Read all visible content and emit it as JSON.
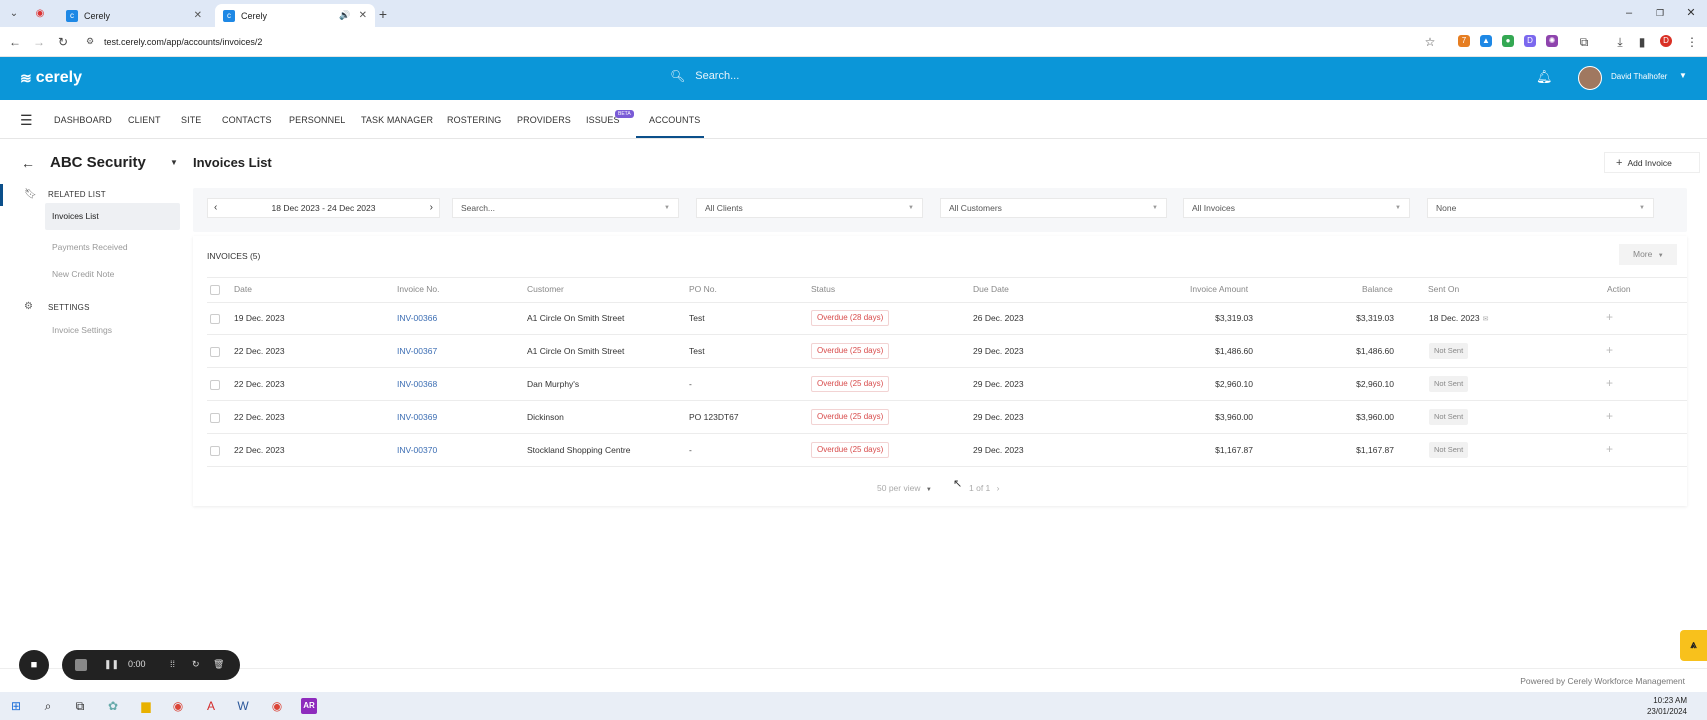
{
  "browser": {
    "tabs": [
      {
        "title": "Cerely"
      },
      {
        "title": "Cerely"
      }
    ],
    "url": "test.cerely.com/app/accounts/invoices/2"
  },
  "header": {
    "logo": "cerely",
    "search_placeholder": "Search...",
    "username": "David Thalhofer"
  },
  "nav": {
    "items": [
      "DASHBOARD",
      "CLIENT",
      "SITE",
      "CONTACTS",
      "PERSONNEL",
      "TASK MANAGER",
      "ROSTERING",
      "PROVIDERS",
      "ISSUES",
      "ACCOUNTS"
    ],
    "beta_badge": "BETA",
    "active": "ACCOUNTS"
  },
  "sidebar": {
    "company": "ABC Security",
    "related_heading": "RELATED LIST",
    "related_items": [
      "Invoices List",
      "Payments Received",
      "New Credit Note"
    ],
    "settings_heading": "SETTINGS",
    "settings_items": [
      "Invoice Settings"
    ]
  },
  "main": {
    "title": "Invoices List",
    "add_button": "Add Invoice",
    "filters": {
      "date_range": "18 Dec 2023 - 24 Dec 2023",
      "search_placeholder": "Search...",
      "clients": "All Clients",
      "customers": "All Customers",
      "invoices": "All Invoices",
      "extra": "None"
    },
    "count_label": "INVOICES (5)",
    "more_button": "More",
    "columns": [
      "Date",
      "Invoice No.",
      "Customer",
      "PO No.",
      "Status",
      "Due Date",
      "Invoice Amount",
      "Balance",
      "Sent On",
      "Action"
    ],
    "rows": [
      {
        "date": "19 Dec. 2023",
        "invoice": "INV-00366",
        "customer": "A1 Circle On Smith Street",
        "po": "Test",
        "status": "Overdue (28 days)",
        "due": "26 Dec. 2023",
        "amount": "$3,319.03",
        "balance": "$3,319.03",
        "sent": "18 Dec. 2023",
        "sent_is_date": true
      },
      {
        "date": "22 Dec. 2023",
        "invoice": "INV-00367",
        "customer": "A1 Circle On Smith Street",
        "po": "Test",
        "status": "Overdue (25 days)",
        "due": "29 Dec. 2023",
        "amount": "$1,486.60",
        "balance": "$1,486.60",
        "sent": "Not Sent",
        "sent_is_date": false
      },
      {
        "date": "22 Dec. 2023",
        "invoice": "INV-00368",
        "customer": "Dan Murphy's",
        "po": "-",
        "status": "Overdue (25 days)",
        "due": "29 Dec. 2023",
        "amount": "$2,960.10",
        "balance": "$2,960.10",
        "sent": "Not Sent",
        "sent_is_date": false
      },
      {
        "date": "22 Dec. 2023",
        "invoice": "INV-00369",
        "customer": "Dickinson",
        "po": "PO 123DT67",
        "status": "Overdue (25 days)",
        "due": "29 Dec. 2023",
        "amount": "$3,960.00",
        "balance": "$3,960.00",
        "sent": "Not Sent",
        "sent_is_date": false
      },
      {
        "date": "22 Dec. 2023",
        "invoice": "INV-00370",
        "customer": "Stockland Shopping Centre",
        "po": "-",
        "status": "Overdue (25 days)",
        "due": "29 Dec. 2023",
        "amount": "$1,167.87",
        "balance": "$1,167.87",
        "sent": "Not Sent",
        "sent_is_date": false
      }
    ],
    "per_view": "50 per view",
    "page_info": "1 of 1"
  },
  "footer": {
    "powered": "Powered by Cerely Workforce Management"
  },
  "recorder": {
    "time": "0:00"
  },
  "taskbar": {
    "time": "10:23 AM",
    "date": "23/01/2024",
    "app_badge": "AR"
  },
  "colors": {
    "brand": "#0b96d8",
    "overdue": "#d84b4b",
    "link": "#3b6db3"
  }
}
